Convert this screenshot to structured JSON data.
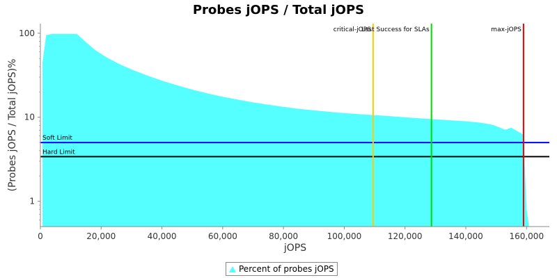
{
  "chart_data": {
    "type": "area",
    "title": "Probes jOPS / Total jOPS",
    "xlabel": "jOPS",
    "ylabel": "(Probes jOPS / Total jOPS)%",
    "yscale": "log",
    "xlim": [
      0,
      167500
    ],
    "ylim": [
      0.5,
      130
    ],
    "xticks": [
      0,
      20000,
      40000,
      60000,
      80000,
      100000,
      120000,
      140000,
      160000
    ],
    "xtick_labels": [
      "0",
      "20,000",
      "40,000",
      "60,000",
      "80,000",
      "100,000",
      "120,000",
      "140,000",
      "160,000"
    ],
    "yticks": [
      1,
      10,
      100
    ],
    "ytick_labels": [
      "1",
      "10",
      "100"
    ],
    "series": [
      {
        "name": "Percent of probes jOPS",
        "color": "#55ffff",
        "x": [
          700,
          1900,
          4000,
          8000,
          12000,
          15000,
          18000,
          22000,
          26000,
          30000,
          35000,
          40000,
          45000,
          50000,
          55000,
          60000,
          65000,
          70000,
          75000,
          80000,
          85000,
          90000,
          95000,
          100000,
          105000,
          110000,
          115000,
          120000,
          125000,
          130000,
          135000,
          140000,
          145000,
          149000,
          151000,
          153000,
          155000,
          157000,
          159000,
          160000,
          160800
        ],
        "y": [
          45,
          95,
          98,
          98,
          98,
          78,
          63,
          51,
          43,
          37,
          31.5,
          27.2,
          24,
          21.3,
          19.2,
          17.5,
          16.2,
          15,
          14.1,
          13.3,
          12.6,
          12.1,
          11.6,
          11.2,
          10.9,
          10.6,
          10.3,
          10,
          9.7,
          9.45,
          9.2,
          8.95,
          8.6,
          8.1,
          7.6,
          7.1,
          7.5,
          6.8,
          6.2,
          0.8,
          0.5
        ]
      }
    ],
    "vlines": [
      {
        "label": "critical-jOPS",
        "x": 109500,
        "color": "#ffcc00"
      },
      {
        "label": "Last Success for SLAs",
        "x": 128700,
        "color": "#00dd00"
      },
      {
        "label": "max-jOPS",
        "x": 159000,
        "color": "#ee0000"
      }
    ],
    "hlines": [
      {
        "label": "Soft Limit",
        "y": 5,
        "color": "#0000ff"
      },
      {
        "label": "Hard Limit",
        "y": 3.4,
        "color": "#000000"
      }
    ],
    "grid": false,
    "legend_position": "bottom-center"
  }
}
